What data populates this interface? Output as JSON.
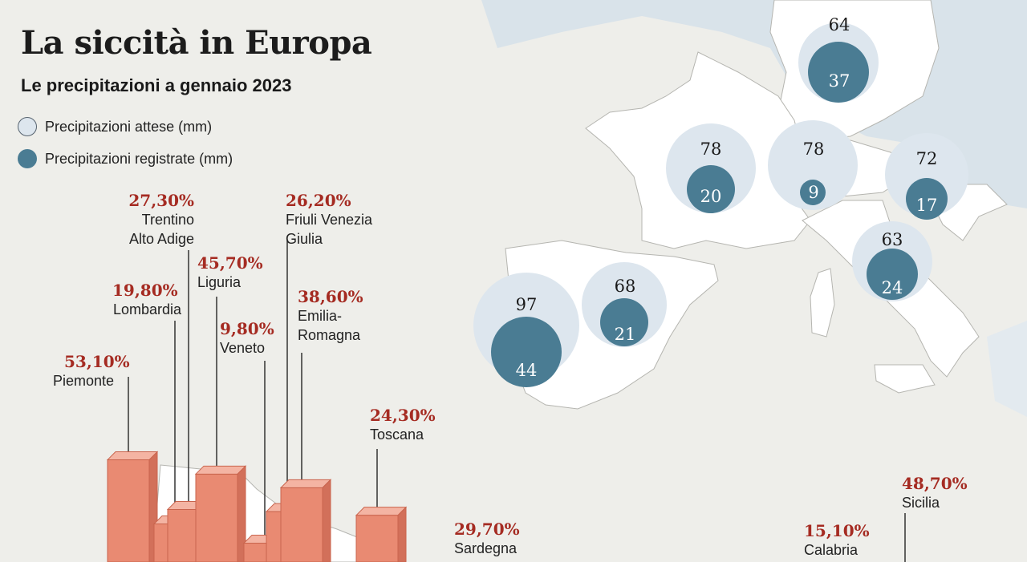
{
  "header": {
    "title": "La siccità in Europa",
    "subtitle": "Le precipitazioni a gennaio 2023"
  },
  "legend": {
    "expected": "Precipitazioni attese (mm)",
    "recorded": "Precipitazioni registrate (mm)"
  },
  "colors": {
    "background": "#eeeeea",
    "sea": "#d9e3ea",
    "land": "#ffffff",
    "expected_circle": "#dde6ee",
    "recorded_circle": "#4a7c93",
    "percent_text": "#a52b22",
    "bar": "#e98a72"
  },
  "circles": [
    {
      "expected": "64",
      "recorded": "37"
    },
    {
      "expected": "78",
      "recorded": "20"
    },
    {
      "expected": "78",
      "recorded": "9"
    },
    {
      "expected": "72",
      "recorded": "17"
    },
    {
      "expected": "63",
      "recorded": "24"
    },
    {
      "expected": "68",
      "recorded": "21"
    },
    {
      "expected": "97",
      "recorded": "44"
    }
  ],
  "regions": [
    {
      "pct": "27,30%",
      "name": "Trentino",
      "name2": "Alto Adige",
      "value": 27.3
    },
    {
      "pct": "26,20%",
      "name": "Friuli Venezia",
      "name2": "Giulia",
      "value": 26.2
    },
    {
      "pct": "45,70%",
      "name": "Liguria",
      "value": 45.7
    },
    {
      "pct": "19,80%",
      "name": "Lombardia",
      "value": 19.8
    },
    {
      "pct": "38,60%",
      "name": "Emilia-",
      "name2": "Romagna",
      "value": 38.6
    },
    {
      "pct": "9,80%",
      "name": "Veneto",
      "value": 9.8
    },
    {
      "pct": "53,10%",
      "name": "Piemonte",
      "value": 53.1
    },
    {
      "pct": "24,30%",
      "name": "Toscana",
      "value": 24.3
    },
    {
      "pct": "29,70%",
      "name": "Sardegna",
      "value": 29.7
    },
    {
      "pct": "15,10%",
      "name": "Calabria",
      "value": 15.1
    },
    {
      "pct": "48,70%",
      "name": "Sicilia",
      "value": 48.7
    }
  ]
}
